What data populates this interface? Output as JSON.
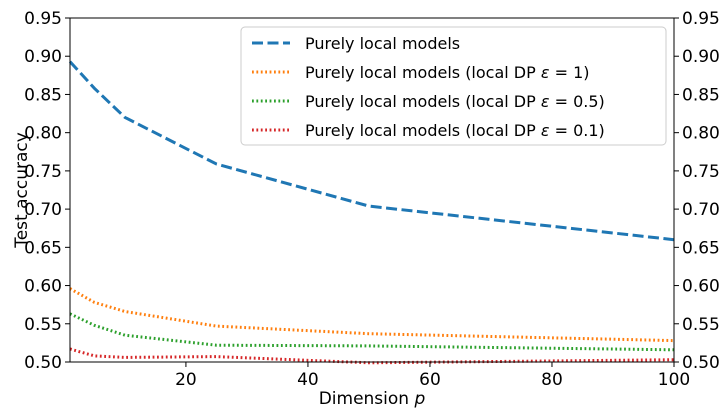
{
  "chart_data": {
    "type": "line",
    "title": "",
    "xlabel": "Dimension",
    "xlabel_var": "p",
    "ylabel": "Test accuracy",
    "xlim": [
      1,
      100
    ],
    "ylim": [
      0.5,
      0.95
    ],
    "xticks": [
      20,
      40,
      60,
      80,
      100
    ],
    "yticks": [
      0.5,
      0.55,
      0.6,
      0.65,
      0.7,
      0.75,
      0.8,
      0.85,
      0.9,
      0.95
    ],
    "ytick_labels": [
      "0.50",
      "0.55",
      "0.60",
      "0.65",
      "0.70",
      "0.75",
      "0.80",
      "0.85",
      "0.90",
      "0.95"
    ],
    "y_right_ticks_mirrored": true,
    "grid": false,
    "legend_position": "top-right",
    "series": [
      {
        "name": "Purely local models",
        "legend_prefix": "Purely local models",
        "legend_suffix": "",
        "color": "#1f77b4",
        "style": "dashed",
        "x": [
          1,
          5,
          10,
          25,
          50,
          100
        ],
        "y": [
          0.893,
          0.858,
          0.82,
          0.759,
          0.704,
          0.66
        ]
      },
      {
        "name": "Purely local models (local DP ε = 1)",
        "legend_prefix": "Purely local models (local DP ",
        "legend_suffix": " = 1)",
        "color": "#ff7f0e",
        "style": "dotted",
        "x": [
          1,
          5,
          10,
          25,
          50,
          100
        ],
        "y": [
          0.596,
          0.578,
          0.566,
          0.547,
          0.537,
          0.528
        ]
      },
      {
        "name": "Purely local models (local DP ε = 0.5)",
        "legend_prefix": "Purely local models (local DP ",
        "legend_suffix": " = 0.5)",
        "color": "#2ca02c",
        "style": "dotted",
        "x": [
          1,
          5,
          10,
          25,
          50,
          100
        ],
        "y": [
          0.563,
          0.548,
          0.535,
          0.522,
          0.521,
          0.516
        ]
      },
      {
        "name": "Purely local models (local DP ε = 0.1)",
        "legend_prefix": "Purely local models (local DP ",
        "legend_suffix": " = 0.1)",
        "color": "#d62728",
        "style": "dotted",
        "x": [
          1,
          5,
          10,
          25,
          50,
          100
        ],
        "y": [
          0.517,
          0.508,
          0.506,
          0.507,
          0.499,
          0.503
        ]
      }
    ]
  }
}
